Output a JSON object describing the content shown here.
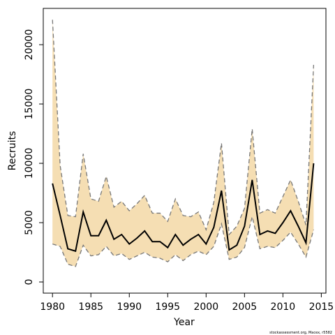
{
  "chart_data": {
    "type": "line",
    "x_label": "Year",
    "y_label": "Recruits",
    "footnote": "stockassessment.org, Macex, r5582",
    "x": [
      1980,
      1981,
      1982,
      1983,
      1984,
      1985,
      1986,
      1987,
      1988,
      1989,
      1990,
      1991,
      1992,
      1993,
      1994,
      1995,
      1996,
      1997,
      1998,
      1999,
      2000,
      2001,
      2002,
      2003,
      2004,
      2005,
      2006,
      2007,
      2008,
      2009,
      2010,
      2011,
      2012,
      2013,
      2014
    ],
    "series": [
      {
        "color": "#000000",
        "values": [
          8300,
          5600,
          2800,
          2600,
          5900,
          3900,
          3900,
          5200,
          3600,
          4000,
          3200,
          3700,
          4300,
          3400,
          3400,
          2900,
          4000,
          3100,
          3600,
          4000,
          3200,
          4600,
          7700,
          2700,
          3100,
          4700,
          8600,
          4000,
          4300,
          4100,
          5000,
          6000,
          4700,
          3300,
          10000
        ]
      },
      {
        "color": "#777777",
        "values": [
          22100,
          9800,
          5600,
          5500,
          10800,
          7000,
          6800,
          8900,
          6300,
          6800,
          6000,
          6600,
          7300,
          5800,
          5800,
          5100,
          7000,
          5600,
          5500,
          5900,
          4400,
          6700,
          11700,
          4000,
          4700,
          6200,
          12900,
          5800,
          6100,
          5800,
          7200,
          8600,
          6800,
          4800,
          18300
        ]
      },
      {
        "color": "#777777",
        "values": [
          3200,
          3000,
          1500,
          1300,
          3100,
          2200,
          2300,
          3000,
          2200,
          2400,
          1900,
          2200,
          2500,
          2100,
          2000,
          1700,
          2300,
          1800,
          2300,
          2600,
          2300,
          3000,
          4900,
          1900,
          2100,
          2900,
          5500,
          2800,
          3000,
          2900,
          3500,
          4200,
          3200,
          2100,
          4400
        ]
      }
    ],
    "band_color": "#f5deb3",
    "xlim": [
      1978.8,
      2015.6
    ],
    "ylim": [
      -940,
      23060
    ],
    "xticks": [
      1980,
      1985,
      1990,
      1995,
      2000,
      2005,
      2010,
      2015
    ],
    "yticks": [
      0,
      5000,
      10000,
      15000,
      20000
    ]
  }
}
